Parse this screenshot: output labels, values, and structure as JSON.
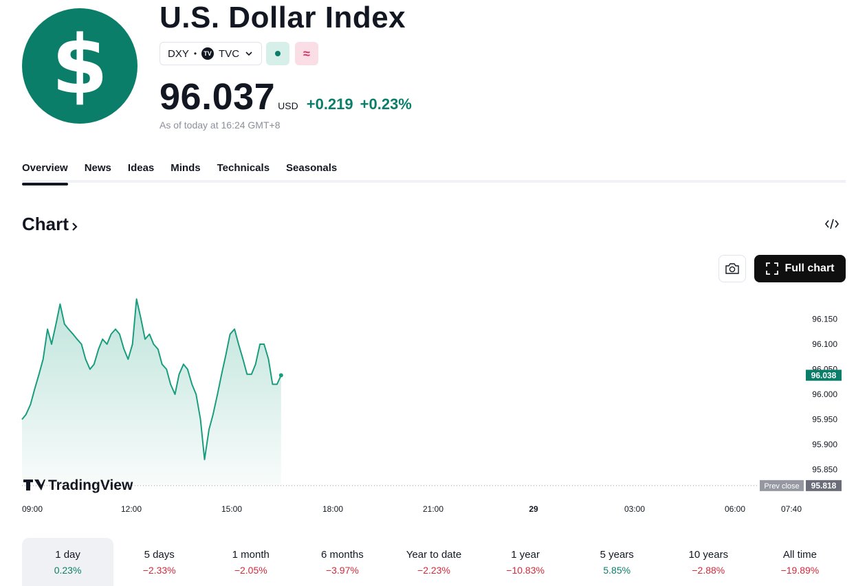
{
  "header": {
    "title": "U.S. Dollar Index",
    "logo_glyph": "$",
    "logo_color": "#0a7e68",
    "symbol": "DXY",
    "exchange": "TVC",
    "exchange_badge": "TV",
    "status_icons": [
      "market-open-dot-icon",
      "delayed-data-icon"
    ],
    "delayed_glyph": "≈"
  },
  "quote": {
    "price": "96.037",
    "currency": "USD",
    "change": "+0.219",
    "change_percent": "+0.23%",
    "as_of": "As of today at 16:24 GMT+8"
  },
  "tabs": [
    {
      "label": "Overview",
      "active": true
    },
    {
      "label": "News"
    },
    {
      "label": "Ideas"
    },
    {
      "label": "Minds"
    },
    {
      "label": "Technicals"
    },
    {
      "label": "Seasonals"
    }
  ],
  "chart_section": {
    "heading": "Chart",
    "full_chart_label": "Full chart",
    "watermark": "TradingView",
    "last_price_label": "96.038",
    "prev_close_label": "Prev close",
    "prev_close_value": "95.818"
  },
  "colors": {
    "accent_green": "#0a7e68",
    "line_green": "#1a9c7e",
    "negative_red": "#d62839",
    "prev_close_gray": "#9598a1"
  },
  "periods": [
    {
      "label": "1 day",
      "value": "0.23%",
      "sign": "pos",
      "active": true
    },
    {
      "label": "5 days",
      "value": "−2.33%",
      "sign": "neg"
    },
    {
      "label": "1 month",
      "value": "−2.05%",
      "sign": "neg"
    },
    {
      "label": "6 months",
      "value": "−3.97%",
      "sign": "neg"
    },
    {
      "label": "Year to date",
      "value": "−2.23%",
      "sign": "neg"
    },
    {
      "label": "1 year",
      "value": "−10.83%",
      "sign": "neg"
    },
    {
      "label": "5 years",
      "value": "5.85%",
      "sign": "pos"
    },
    {
      "label": "10 years",
      "value": "−2.88%",
      "sign": "neg"
    },
    {
      "label": "All time",
      "value": "−19.89%",
      "sign": "neg"
    }
  ],
  "chart_data": {
    "type": "area",
    "title": "",
    "xlabel": "",
    "ylabel": "",
    "x_tick_labels": [
      "09:00",
      "12:00",
      "15:00",
      "18:00",
      "21:00",
      "29",
      "03:00",
      "06:00",
      "07:40"
    ],
    "y_tick_labels": [
      "96.150",
      "96.100",
      "96.050",
      "96.000",
      "95.950",
      "95.900",
      "95.850"
    ],
    "ylim": [
      95.8,
      96.2
    ],
    "x_unit": "hours since 09:00",
    "x_span": [
      0,
      22.67
    ],
    "grid": false,
    "prev_close": 95.818,
    "last_value": 96.038,
    "series": [
      {
        "x": [
          0,
          0.12,
          0.25,
          0.37,
          0.5,
          0.62,
          0.75,
          0.87,
          1.0,
          1.12,
          1.25,
          1.37,
          1.5,
          1.62,
          1.75,
          1.87,
          2.0,
          2.12,
          2.25,
          2.37,
          2.5,
          2.62,
          2.75,
          2.87,
          3.0,
          3.12,
          3.25,
          3.37,
          3.5,
          3.62,
          3.75,
          3.87,
          4.0,
          4.12,
          4.25,
          4.37,
          4.5,
          4.62,
          4.75,
          4.87,
          5.0,
          5.12,
          5.25,
          5.37,
          5.5,
          5.62,
          5.75,
          5.87,
          6.0,
          6.12,
          6.25,
          6.37,
          6.5,
          6.62,
          6.75,
          6.87,
          7.0,
          7.12,
          7.25,
          7.37,
          7.5,
          7.62
        ],
        "values": [
          95.95,
          95.96,
          95.98,
          96.01,
          96.04,
          96.07,
          96.13,
          96.1,
          96.14,
          96.18,
          96.14,
          96.13,
          96.12,
          96.11,
          96.1,
          96.07,
          96.05,
          96.06,
          96.09,
          96.11,
          96.1,
          96.12,
          96.13,
          96.12,
          96.09,
          96.07,
          96.1,
          96.19,
          96.15,
          96.11,
          96.12,
          96.1,
          96.09,
          96.06,
          96.05,
          96.02,
          96.0,
          96.04,
          96.06,
          96.05,
          96.02,
          96.0,
          95.95,
          95.87,
          95.93,
          95.96,
          96.0,
          96.04,
          96.08,
          96.12,
          96.13,
          96.1,
          96.07,
          96.04,
          96.04,
          96.06,
          96.1,
          96.1,
          96.07,
          96.02,
          96.02,
          96.038
        ]
      }
    ]
  }
}
